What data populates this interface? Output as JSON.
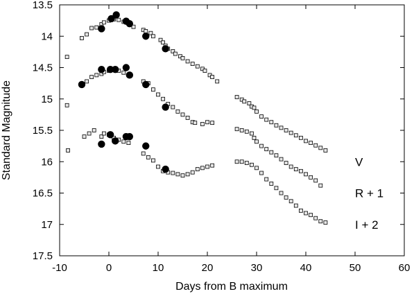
{
  "chart_data": {
    "type": "scatter",
    "title": "",
    "xlabel": "Days from B maximum",
    "ylabel": "Standard Magnitude",
    "xlim": [
      -10,
      60
    ],
    "ylim": [
      17.5,
      13.5
    ],
    "y_inverted": true,
    "grid": false,
    "x_ticks": [
      "-10",
      "0",
      "10",
      "20",
      "30",
      "40",
      "50",
      "60"
    ],
    "y_ticks": [
      "13.5",
      "14",
      "14.5",
      "15",
      "15.5",
      "16",
      "16.5",
      "17",
      "17.5"
    ],
    "band_labels": [
      {
        "text": "V",
        "x": 50,
        "y": 16.0
      },
      {
        "text": "R + 1",
        "x": 50,
        "y": 16.5
      },
      {
        "text": "I + 2",
        "x": 50,
        "y": 17.0
      }
    ],
    "series": [
      {
        "band": "V",
        "marker": "small-square",
        "points": [
          [
            -5.5,
            14.03
          ],
          [
            -4.5,
            13.97
          ],
          [
            -3.5,
            13.87
          ],
          [
            -2.5,
            13.86
          ],
          [
            -1.5,
            13.81
          ],
          [
            -1.0,
            13.78
          ],
          [
            0.0,
            13.75
          ],
          [
            1.0,
            13.73
          ],
          [
            2.0,
            13.74
          ],
          [
            3.0,
            13.77
          ],
          [
            4.0,
            13.8
          ],
          [
            5.0,
            13.85
          ],
          [
            7.0,
            13.9
          ],
          [
            7.5,
            13.92
          ],
          [
            8.5,
            13.95
          ],
          [
            9.0,
            14.0
          ],
          [
            10.5,
            14.06
          ],
          [
            11.0,
            14.1
          ],
          [
            11.5,
            14.15
          ],
          [
            12.0,
            14.2
          ],
          [
            13.0,
            14.24
          ],
          [
            13.5,
            14.28
          ],
          [
            14.5,
            14.32
          ],
          [
            15.0,
            14.35
          ],
          [
            16.0,
            14.4
          ],
          [
            17.0,
            14.44
          ],
          [
            18.0,
            14.48
          ],
          [
            19.0,
            14.52
          ],
          [
            19.5,
            14.55
          ],
          [
            20.5,
            14.62
          ],
          [
            21.0,
            14.65
          ],
          [
            22.0,
            14.72
          ],
          [
            26.0,
            14.97
          ],
          [
            27.0,
            15.01
          ],
          [
            27.5,
            15.04
          ],
          [
            28.5,
            15.07
          ],
          [
            29.0,
            15.12
          ],
          [
            29.5,
            15.14
          ],
          [
            30.0,
            15.2
          ],
          [
            31.0,
            15.28
          ],
          [
            32.0,
            15.33
          ],
          [
            33.0,
            15.37
          ],
          [
            34.0,
            15.42
          ],
          [
            35.0,
            15.46
          ],
          [
            36.0,
            15.5
          ],
          [
            37.0,
            15.54
          ],
          [
            38.0,
            15.58
          ],
          [
            39.0,
            15.62
          ],
          [
            40.0,
            15.67
          ],
          [
            41.0,
            15.7
          ],
          [
            42.0,
            15.74
          ],
          [
            43.0,
            15.78
          ],
          [
            44.0,
            15.82
          ]
        ]
      },
      {
        "band": "V",
        "marker": "large-dot",
        "points": [
          [
            -1.5,
            13.88
          ],
          [
            0.5,
            13.72
          ],
          [
            1.5,
            13.66
          ],
          [
            3.5,
            13.76
          ],
          [
            4.2,
            13.8
          ],
          [
            7.5,
            14.0
          ],
          [
            11.5,
            14.2
          ]
        ]
      },
      {
        "band": "R + 1",
        "marker": "small-square",
        "points": [
          [
            -8.5,
            15.1
          ],
          [
            -5.5,
            14.77
          ],
          [
            -4.5,
            14.72
          ],
          [
            -3.5,
            14.65
          ],
          [
            -2.5,
            14.62
          ],
          [
            -1.5,
            14.6
          ],
          [
            -1.0,
            14.57
          ],
          [
            0.0,
            14.55
          ],
          [
            1.0,
            14.53
          ],
          [
            2.0,
            14.55
          ],
          [
            3.0,
            14.58
          ],
          [
            4.0,
            14.62
          ],
          [
            7.0,
            14.72
          ],
          [
            8.0,
            14.75
          ],
          [
            9.0,
            14.85
          ],
          [
            10.0,
            14.93
          ],
          [
            11.0,
            15.0
          ],
          [
            12.0,
            15.08
          ],
          [
            13.0,
            15.13
          ],
          [
            14.0,
            15.2
          ],
          [
            15.0,
            15.25
          ],
          [
            16.0,
            15.3
          ],
          [
            17.0,
            15.37
          ],
          [
            17.5,
            15.38
          ],
          [
            19.0,
            15.4
          ],
          [
            20.0,
            15.37
          ],
          [
            21.0,
            15.38
          ],
          [
            26.0,
            15.48
          ],
          [
            27.0,
            15.5
          ],
          [
            28.0,
            15.52
          ],
          [
            29.0,
            15.55
          ],
          [
            29.5,
            15.62
          ],
          [
            30.0,
            15.68
          ],
          [
            31.0,
            15.75
          ],
          [
            32.0,
            15.8
          ],
          [
            33.0,
            15.85
          ],
          [
            34.0,
            15.9
          ],
          [
            35.0,
            15.96
          ],
          [
            36.0,
            16.02
          ],
          [
            37.0,
            16.08
          ],
          [
            38.0,
            16.12
          ],
          [
            39.0,
            16.15
          ],
          [
            40.0,
            16.2
          ],
          [
            41.0,
            16.25
          ],
          [
            42.0,
            16.3
          ],
          [
            43.0,
            16.38
          ]
        ]
      },
      {
        "band": "R + 1",
        "marker": "large-dot",
        "points": [
          [
            -5.5,
            14.77
          ],
          [
            -1.5,
            14.53
          ],
          [
            0.3,
            14.53
          ],
          [
            1.3,
            14.53
          ],
          [
            3.5,
            14.5
          ],
          [
            4.2,
            14.62
          ],
          [
            7.5,
            14.77
          ],
          [
            11.5,
            15.13
          ]
        ]
      },
      {
        "band": "I + 2",
        "marker": "small-square",
        "points": [
          [
            -8.5,
            14.33
          ],
          [
            -8.3,
            15.82
          ],
          [
            -5.0,
            15.6
          ],
          [
            -4.0,
            15.55
          ],
          [
            -3.0,
            15.5
          ],
          [
            -1.5,
            15.6
          ],
          [
            -1.0,
            15.55
          ],
          [
            0.0,
            15.57
          ],
          [
            1.0,
            15.62
          ],
          [
            2.0,
            15.65
          ],
          [
            3.0,
            15.68
          ],
          [
            4.0,
            15.7
          ],
          [
            7.0,
            15.87
          ],
          [
            8.0,
            15.93
          ],
          [
            9.0,
            15.98
          ],
          [
            10.0,
            16.08
          ],
          [
            11.0,
            16.15
          ],
          [
            12.0,
            16.17
          ],
          [
            13.0,
            16.18
          ],
          [
            14.0,
            16.2
          ],
          [
            15.0,
            16.22
          ],
          [
            16.0,
            16.2
          ],
          [
            17.0,
            16.17
          ],
          [
            18.0,
            16.12
          ],
          [
            19.0,
            16.1
          ],
          [
            20.0,
            16.08
          ],
          [
            21.0,
            16.06
          ],
          [
            26.0,
            16.0
          ],
          [
            27.0,
            16.0
          ],
          [
            28.0,
            16.02
          ],
          [
            29.0,
            16.05
          ],
          [
            30.0,
            16.1
          ],
          [
            31.0,
            16.18
          ],
          [
            32.0,
            16.28
          ],
          [
            33.0,
            16.35
          ],
          [
            34.0,
            16.42
          ],
          [
            35.0,
            16.5
          ],
          [
            36.0,
            16.57
          ],
          [
            37.0,
            16.63
          ],
          [
            38.0,
            16.7
          ],
          [
            39.0,
            16.78
          ],
          [
            40.0,
            16.82
          ],
          [
            41.0,
            16.85
          ],
          [
            42.0,
            16.9
          ],
          [
            43.0,
            16.95
          ],
          [
            44.0,
            16.97
          ]
        ]
      },
      {
        "band": "I + 2",
        "marker": "large-dot",
        "points": [
          [
            -1.5,
            15.72
          ],
          [
            0.3,
            15.57
          ],
          [
            1.3,
            15.67
          ],
          [
            3.5,
            15.6
          ],
          [
            4.2,
            15.6
          ],
          [
            7.5,
            15.75
          ],
          [
            11.5,
            16.12
          ]
        ]
      }
    ]
  }
}
